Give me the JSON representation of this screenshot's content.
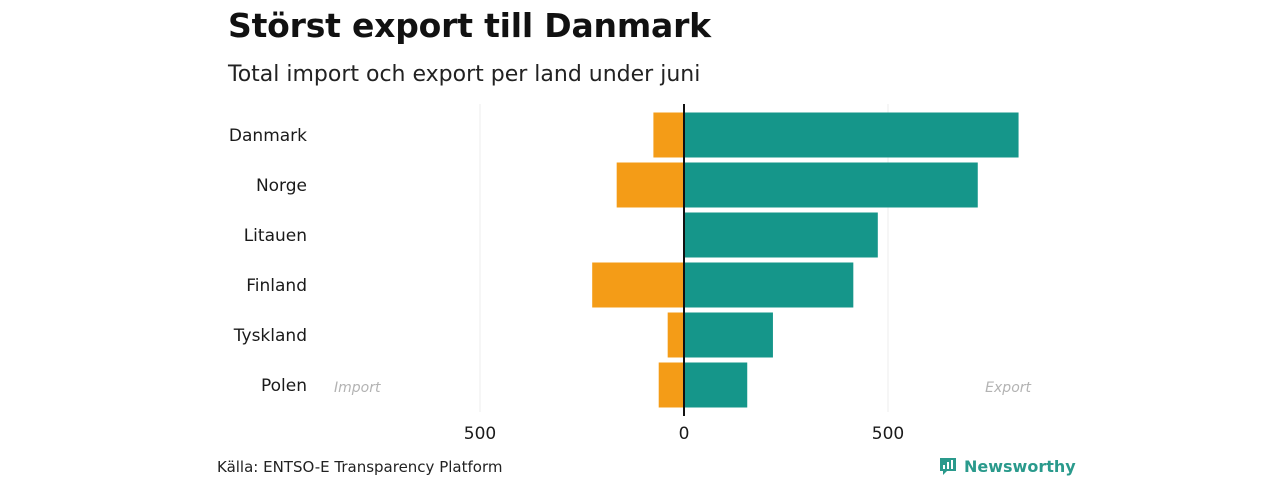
{
  "header": {
    "title": "Störst export till Danmark",
    "subtitle": "Total import och export per land under juni"
  },
  "footer": {
    "source": "Källa: ENTSO-E Transparency Platform",
    "brand": "Newsworthy"
  },
  "colors": {
    "import": "#f49c17",
    "export": "#15968a",
    "grid": "#ececec",
    "axis": "#111111",
    "annotation": "#b3b3b3",
    "brand": "#2a9a8c"
  },
  "chart_data": {
    "type": "bar",
    "orientation": "horizontal-diverging",
    "title": "Störst export till Danmark",
    "subtitle": "Total import och export per land under juni",
    "categories": [
      "Danmark",
      "Norge",
      "Litauen",
      "Finland",
      "Tyskland",
      "Polen"
    ],
    "series": [
      {
        "name": "Import",
        "values": [
          75,
          165,
          0,
          225,
          40,
          62
        ]
      },
      {
        "name": "Export",
        "values": [
          820,
          720,
          475,
          415,
          218,
          155
        ]
      }
    ],
    "x_ticks": [
      {
        "value": -500,
        "label": "500"
      },
      {
        "value": 0,
        "label": "0"
      },
      {
        "value": 500,
        "label": "500"
      }
    ],
    "xlim": [
      -900,
      850
    ],
    "annotations": {
      "left": "Import",
      "right": "Export"
    },
    "grid": true
  }
}
